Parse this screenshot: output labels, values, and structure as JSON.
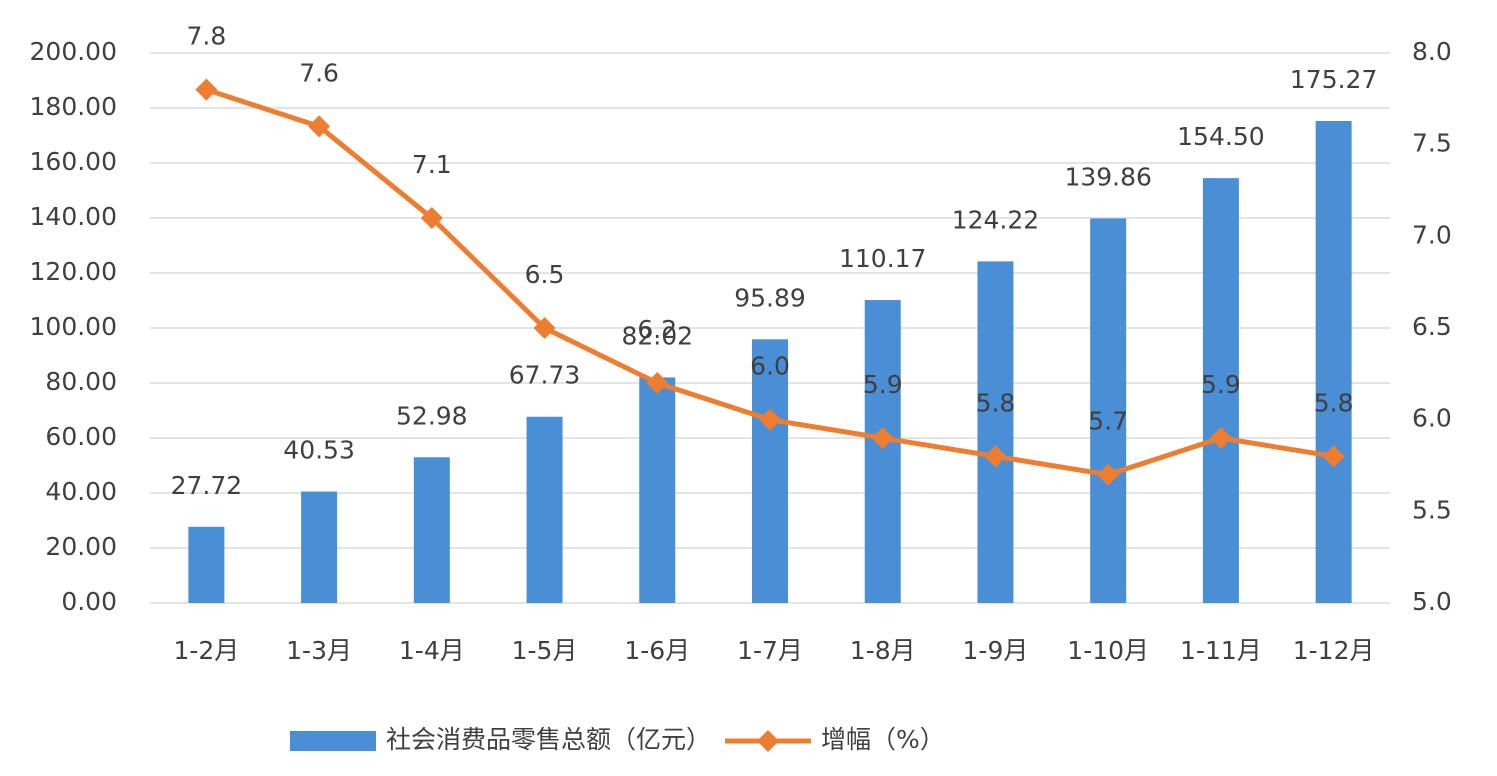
{
  "chart_data": {
    "type": "bar-line",
    "categories": [
      "1-2月",
      "1-3月",
      "1-4月",
      "1-5月",
      "1-6月",
      "1-7月",
      "1-8月",
      "1-9月",
      "1-10月",
      "1-11月",
      "1-12月"
    ],
    "series": [
      {
        "name": "社会消费品零售总额（亿元）",
        "type": "bar",
        "color": "#4a8ed6",
        "values": [
          27.72,
          40.53,
          52.98,
          67.73,
          82.02,
          95.89,
          110.17,
          124.22,
          139.86,
          154.5,
          175.27
        ],
        "value_labels": [
          "27.72",
          "40.53",
          "52.98",
          "67.73",
          "82.02",
          "95.89",
          "110.17",
          "124.22",
          "139.86",
          "154.50",
          "175.27"
        ]
      },
      {
        "name": "增幅（%）",
        "type": "line",
        "axis": "y2",
        "color": "#ed7d31",
        "values": [
          7.8,
          7.6,
          7.1,
          6.5,
          6.2,
          6.0,
          5.9,
          5.8,
          5.7,
          5.9,
          5.8
        ],
        "value_labels": [
          "7.8",
          "7.6",
          "7.1",
          "6.5",
          "6.2",
          "6.0",
          "5.9",
          "5.8",
          "5.7",
          "5.9",
          "5.8"
        ]
      }
    ],
    "ylim": [
      0,
      200
    ],
    "yticks": [
      {
        "value": 0,
        "label": "0.00"
      },
      {
        "value": 20,
        "label": "20.00"
      },
      {
        "value": 40,
        "label": "40.00"
      },
      {
        "value": 60,
        "label": "60.00"
      },
      {
        "value": 80,
        "label": "80.00"
      },
      {
        "value": 100,
        "label": "100.00"
      },
      {
        "value": 120,
        "label": "120.00"
      },
      {
        "value": 140,
        "label": "140.00"
      },
      {
        "value": 160,
        "label": "160.00"
      },
      {
        "value": 180,
        "label": "180.00"
      },
      {
        "value": 200,
        "label": "200.00"
      }
    ],
    "y2lim": [
      5,
      8
    ],
    "y2ticks": [
      {
        "value": 5,
        "label": "5.0"
      },
      5.5,
      {
        "value": 6,
        "label": "6.0"
      },
      6.5,
      {
        "value": 7,
        "label": "7.0"
      },
      7.5,
      {
        "value": 8,
        "label": "8.0"
      }
    ],
    "grid": true,
    "legend": "bottom"
  }
}
